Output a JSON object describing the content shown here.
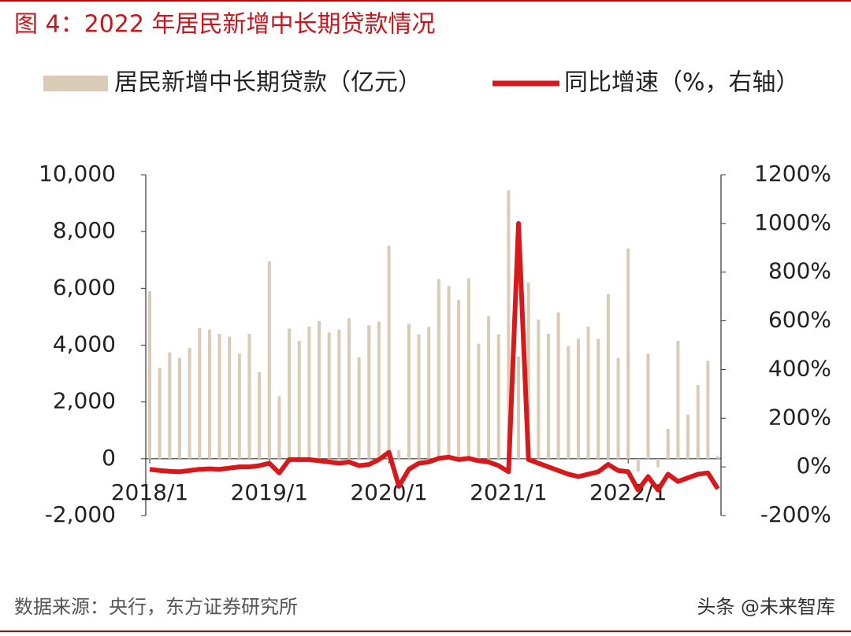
{
  "chart_data": {
    "type": "bar_line",
    "title": "图 4：2022 年居民新增中长期贷款情况",
    "source": "数据来源：央行，东方证券研究所",
    "watermark": "头条 @未来智库",
    "categories": [
      "2018/1",
      null,
      null,
      null,
      null,
      null,
      null,
      null,
      null,
      null,
      null,
      null,
      "2019/1",
      null,
      null,
      null,
      null,
      null,
      null,
      null,
      null,
      null,
      null,
      null,
      "2020/1",
      null,
      null,
      null,
      null,
      null,
      null,
      null,
      null,
      null,
      null,
      null,
      "2021/1",
      null,
      null,
      null,
      null,
      null,
      null,
      null,
      null,
      null,
      null,
      null,
      "2022/1",
      null,
      null,
      null,
      null,
      null,
      null,
      null,
      null,
      null
    ],
    "series": [
      {
        "name": "居民新增中长期贷款（亿元）",
        "type": "bar",
        "color": "#d9cbb5",
        "values": [
          5900,
          3200,
          3750,
          3550,
          3900,
          4600,
          4550,
          4400,
          4300,
          3700,
          4400,
          3050,
          6950,
          2200,
          4580,
          4150,
          4650,
          4850,
          4450,
          4550,
          4950,
          3580,
          4700,
          4830,
          7500,
          300,
          4750,
          4380,
          4640,
          6330,
          6080,
          5600,
          6350,
          4050,
          5020,
          4380,
          9450,
          3600,
          6200,
          4900,
          4400,
          5150,
          3970,
          4230,
          4650,
          4220,
          5800,
          3550,
          7400,
          -450,
          3700,
          -300,
          1050,
          4150,
          1550,
          2600,
          3450,
          100
        ]
      },
      {
        "name": "同比增速（%，右轴）",
        "type": "line",
        "axis": "y2",
        "color": "#d7191c",
        "values": [
          -10,
          -15,
          -18,
          -20,
          -15,
          -10,
          -8,
          -10,
          -5,
          0,
          0,
          5,
          15,
          -25,
          30,
          30,
          30,
          25,
          20,
          15,
          20,
          5,
          10,
          30,
          60,
          -80,
          -10,
          15,
          20,
          35,
          40,
          30,
          35,
          25,
          20,
          5,
          -20,
          1000,
          30,
          15,
          0,
          -15,
          -30,
          -40,
          -30,
          -20,
          10,
          -15,
          -20,
          -95,
          -40,
          -95,
          -30,
          -60,
          -45,
          -30,
          -25,
          -90
        ]
      }
    ],
    "ylim": [
      -2000,
      10000
    ],
    "yticks": [
      {
        "value": -2000,
        "label": "-2,000"
      },
      0,
      {
        "value": 2000,
        "label": "2,000"
      },
      {
        "value": 4000,
        "label": "4,000"
      },
      {
        "value": 6000,
        "label": "6,000"
      },
      {
        "value": 8000,
        "label": "8,000"
      },
      {
        "value": 10000,
        "label": "10,000"
      }
    ],
    "y2lim": [
      -200,
      1200
    ],
    "y2ticks": [
      {
        "value": -200,
        "label": "-200%"
      },
      {
        "value": 0,
        "label": "0%"
      },
      {
        "value": 200,
        "label": "200%"
      },
      {
        "value": 400,
        "label": "400%"
      },
      {
        "value": 600,
        "label": "600%"
      },
      {
        "value": 800,
        "label": "800%"
      },
      {
        "value": 1000,
        "label": "1000%"
      },
      {
        "value": 1200,
        "label": "1200%"
      }
    ],
    "legend": "top"
  }
}
